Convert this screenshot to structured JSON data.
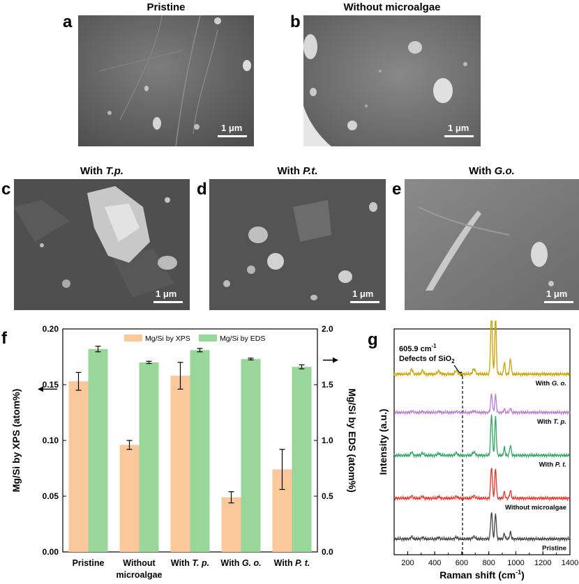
{
  "panels": {
    "a": {
      "letter": "a",
      "title": "Pristine",
      "scale": "1 μm"
    },
    "b": {
      "letter": "b",
      "title": "Without microalgae",
      "scale": "1 μm"
    },
    "c": {
      "letter": "c",
      "title_prefix": "With ",
      "title_species": "T.p.",
      "scale": "1 μm"
    },
    "d": {
      "letter": "d",
      "title_prefix": "With ",
      "title_species": "P.t.",
      "scale": "1 μm"
    },
    "e": {
      "letter": "e",
      "title_prefix": "With ",
      "title_species": "G.o.",
      "scale": "1 μm"
    },
    "f": {
      "letter": "f"
    },
    "g": {
      "letter": "g"
    }
  },
  "chart_data": [
    {
      "id": "f",
      "type": "bar",
      "categories": [
        [
          "Pristine"
        ],
        [
          "Without",
          "microalgae"
        ],
        [
          "With ",
          "T. p."
        ],
        [
          "With ",
          "G. o."
        ],
        [
          "With ",
          "P. t."
        ]
      ],
      "series": [
        {
          "name": "Mg/Si by XPS",
          "axis": "left",
          "color": "#FBC89B",
          "values": [
            0.153,
            0.096,
            0.158,
            0.049,
            0.074
          ],
          "errors": [
            0.008,
            0.004,
            0.012,
            0.005,
            0.018
          ]
        },
        {
          "name": "Mg/Si by EDS",
          "axis": "right",
          "color": "#98D69A",
          "values": [
            1.82,
            1.7,
            1.81,
            1.73,
            1.66
          ],
          "errors": [
            0.025,
            0.01,
            0.015,
            0.008,
            0.018
          ]
        }
      ],
      "ylabel_left": "Mg/Si by XPS (atom%)",
      "ylabel_right": "Mg/Si by EDS (atom%)",
      "ylim_left": [
        0,
        0.2
      ],
      "ylim_right": [
        0,
        2.0
      ],
      "yticks_left": [
        "0.00",
        "0.05",
        "0.10",
        "0.15",
        "0.20"
      ],
      "yticks_right": [
        "0.0",
        "0.5",
        "1.0",
        "1.5",
        "2.0"
      ],
      "legend": "top-center"
    },
    {
      "id": "g",
      "type": "line",
      "xlabel": "Raman shift (cm",
      "xlabel_sup": "-1",
      "xlabel_end": ")",
      "ylabel": "Intensity (a.u.)",
      "xlim": [
        100,
        1400
      ],
      "xticks": [
        "200",
        "400",
        "600",
        "800",
        "1000",
        "1200",
        "1400"
      ],
      "annotation_value": "605.9 cm",
      "annotation_sup": "-1",
      "annotation_line2": "Defects of SiO",
      "annotation_sub": "2",
      "annotation_x": 605.9,
      "series": [
        {
          "prefix": "With ",
          "species": "G. o.",
          "color": "#C9A100",
          "baseline": 0.8,
          "peak": 0.27
        },
        {
          "prefix": "With ",
          "species": "T. p.",
          "color": "#B97BD6",
          "baseline": 0.63,
          "peak": 0.08
        },
        {
          "prefix": "With ",
          "species": "P. t.",
          "color": "#2FA663",
          "baseline": 0.44,
          "peak": 0.18
        },
        {
          "prefix": "",
          "species": "",
          "label": "Without microalgae",
          "color": "#E8342C",
          "baseline": 0.25,
          "peak": 0.14
        },
        {
          "prefix": "",
          "species": "",
          "label": "Pristine",
          "color": "#444444",
          "baseline": 0.07,
          "peak": 0.12
        }
      ]
    }
  ]
}
